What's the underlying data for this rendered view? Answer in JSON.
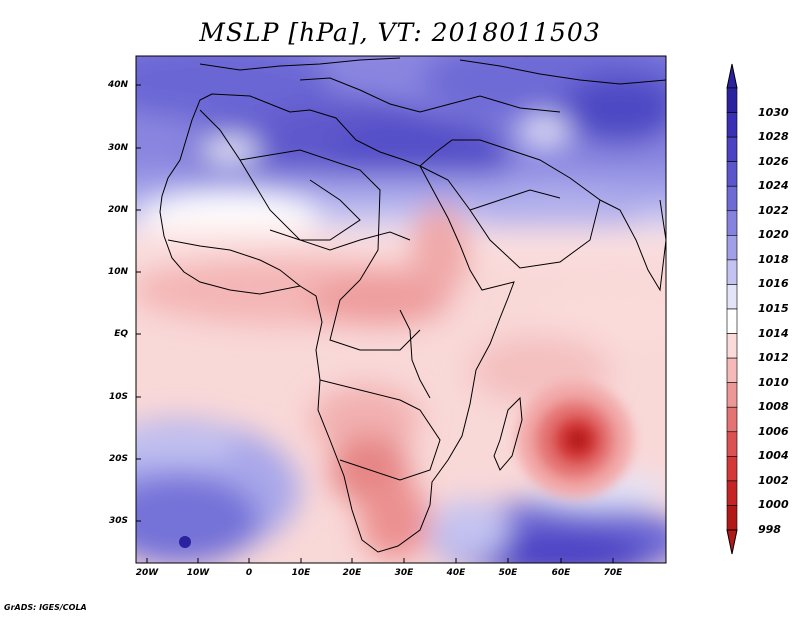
{
  "title": "MSLP [hPa], VT: 2018011503",
  "credit": "GrADS: IGES/COLA",
  "lat_labels": [
    "40N",
    "30N",
    "20N",
    "10N",
    "EQ",
    "10S",
    "20S",
    "30S"
  ],
  "lon_labels": [
    "20W",
    "10W",
    "0",
    "10E",
    "20E",
    "30E",
    "40E",
    "50E",
    "60E",
    "70E"
  ],
  "colorbar": {
    "levels": [
      "1030",
      "1028",
      "1026",
      "1024",
      "1022",
      "1020",
      "1018",
      "1016",
      "1015",
      "1014",
      "1012",
      "1010",
      "1008",
      "1006",
      "1004",
      "1002",
      "1000",
      "998"
    ],
    "colors": [
      "#2b22a0",
      "#3a30b6",
      "#4b43c4",
      "#5c56cd",
      "#6e6ad6",
      "#8683e0",
      "#a19fe8",
      "#c3c2f1",
      "#e4e4f8",
      "#ffffff",
      "#fbdada",
      "#f6b9b9",
      "#ee9797",
      "#e57373",
      "#dc5252",
      "#d43838",
      "#c62424",
      "#b31818"
    ]
  },
  "map": {
    "field": "mean sea level pressure",
    "highs": [
      "Mediterranean / Sahara",
      "South Atlantic",
      "Southern Indian Ocean",
      "Central Asia"
    ],
    "lows": [
      "Tropical cyclone east of Madagascar",
      "Southern Africa thermal low",
      "Equatorial trough"
    ]
  }
}
